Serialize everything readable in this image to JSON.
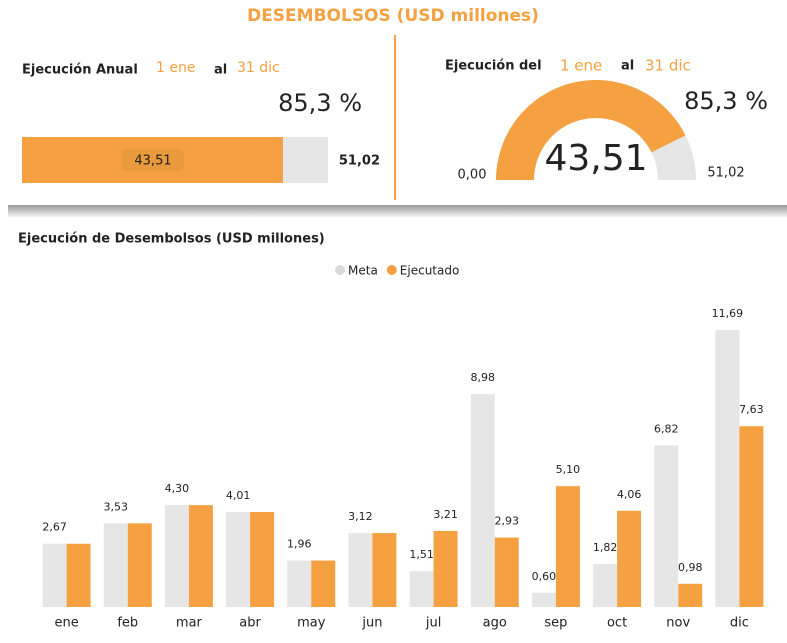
{
  "header": {
    "title": "DESEMBOLSOS (USD millones)"
  },
  "kpi": {
    "label": "Ejecución Anual",
    "from": "1 ene",
    "connector": "al",
    "to": "31 dic",
    "percent": 85.3,
    "percent_label": "85,3 %",
    "value": 43.51,
    "value_label": "43,51",
    "target": 51.02,
    "target_label": "51,02",
    "color": "#f5a142",
    "track_color": "#e6e6e6"
  },
  "gauge": {
    "label": "Ejecución del",
    "from": "1 ene",
    "connector": "al",
    "to": "31 dic",
    "percent": 85.3,
    "percent_label": "85,3 %",
    "min": 0,
    "min_label": "0,00",
    "value": 43.51,
    "value_label": "43,51",
    "max": 51.02,
    "max_label": "51,02",
    "color": "#f5a142",
    "track_color": "#e6e6e6"
  },
  "chart_data": {
    "type": "bar",
    "title": "Ejecución de Desembolsos (USD millones)",
    "categories": [
      "ene",
      "feb",
      "mar",
      "abr",
      "may",
      "jun",
      "jul",
      "ago",
      "sep",
      "oct",
      "nov",
      "dic"
    ],
    "series": [
      {
        "name": "Meta",
        "color": "#e6e6e6",
        "values": [
          2.67,
          3.53,
          4.3,
          4.01,
          1.96,
          3.12,
          1.51,
          8.98,
          0.6,
          1.82,
          6.82,
          11.69
        ],
        "value_labels": [
          "2,67",
          "3,53",
          "4,30",
          "4,01",
          "1,96",
          "3,12",
          "1,51",
          "8,98",
          "0,60",
          "1,82",
          "6,82",
          "11,69"
        ]
      },
      {
        "name": "Ejecutado",
        "color": "#f5a142",
        "values": [
          2.67,
          3.53,
          4.3,
          4.01,
          1.96,
          3.12,
          3.21,
          2.93,
          5.1,
          4.06,
          0.98,
          7.63
        ],
        "value_labels": [
          null,
          null,
          null,
          null,
          null,
          null,
          "3,21",
          "2,93",
          "5,10",
          "4,06",
          "0,98",
          "7,63"
        ]
      }
    ],
    "legend": "top"
  }
}
